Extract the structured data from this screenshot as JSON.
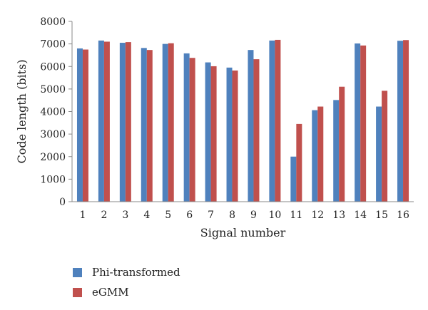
{
  "chart_data": {
    "type": "bar",
    "xlabel": "Signal number",
    "ylabel": "Code length (bits)",
    "ylim": [
      0,
      8000
    ],
    "yticks": [
      0,
      1000,
      2000,
      3000,
      4000,
      5000,
      6000,
      7000,
      8000
    ],
    "categories": [
      "1",
      "2",
      "3",
      "4",
      "5",
      "6",
      "7",
      "8",
      "9",
      "10",
      "11",
      "12",
      "13",
      "14",
      "15",
      "16"
    ],
    "grid": false,
    "legend_position": "bottom-left",
    "series": [
      {
        "name": "Phi-transformed",
        "color": "#4f81bd",
        "values": [
          6800,
          7150,
          7050,
          6820,
          7000,
          6580,
          6180,
          5950,
          6730,
          7150,
          2000,
          4060,
          4510,
          7020,
          4220,
          7140
        ]
      },
      {
        "name": "eGMM",
        "color": "#c0504d",
        "values": [
          6750,
          7100,
          7080,
          6730,
          7030,
          6380,
          6010,
          5820,
          6320,
          7180,
          3450,
          4220,
          5100,
          6930,
          4920,
          7170
        ]
      }
    ]
  }
}
